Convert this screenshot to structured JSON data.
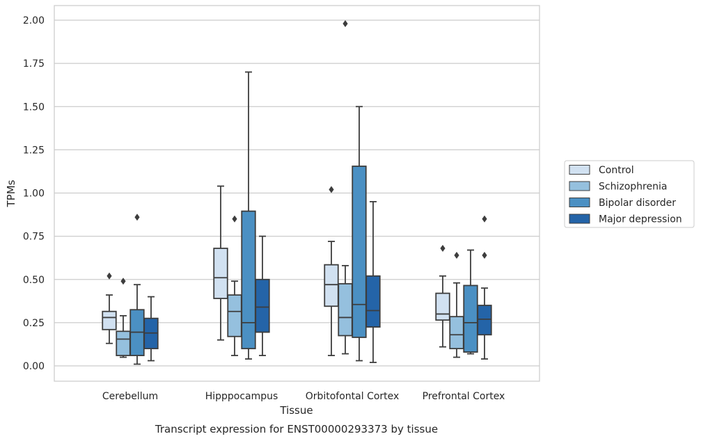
{
  "chart_data": {
    "type": "box",
    "caption": "Transcript expression for ENST00000293373 by tissue",
    "xlabel": "Tissue",
    "ylabel": "TPMs",
    "ylim": [
      -0.09,
      2.08
    ],
    "yticks": [
      "0.00",
      "0.25",
      "0.50",
      "0.75",
      "1.00",
      "1.25",
      "1.50",
      "1.75",
      "2.00"
    ],
    "ytick_values": [
      0,
      0.25,
      0.5,
      0.75,
      1.0,
      1.25,
      1.5,
      1.75,
      2.0
    ],
    "grid": "horizontal",
    "legend_position": "right",
    "categories": [
      "Cerebellum",
      "Hipppocampus",
      "Orbitofontal Cortex",
      "Prefrontal Cortex"
    ],
    "series": [
      {
        "name": "Control",
        "color": "#d1e1f1",
        "boxes": [
          {
            "whisker_low": 0.13,
            "q1": 0.21,
            "median": 0.28,
            "q3": 0.315,
            "whisker_high": 0.41,
            "outliers": [
              0.52
            ]
          },
          {
            "whisker_low": 0.15,
            "q1": 0.39,
            "median": 0.51,
            "q3": 0.68,
            "whisker_high": 1.04,
            "outliers": []
          },
          {
            "whisker_low": 0.06,
            "q1": 0.345,
            "median": 0.47,
            "q3": 0.585,
            "whisker_high": 0.72,
            "outliers": [
              1.02
            ]
          },
          {
            "whisker_low": 0.11,
            "q1": 0.265,
            "median": 0.3,
            "q3": 0.42,
            "whisker_high": 0.52,
            "outliers": [
              0.68
            ]
          }
        ]
      },
      {
        "name": "Schizophrenia",
        "color": "#95c0de",
        "boxes": [
          {
            "whisker_low": 0.05,
            "q1": 0.06,
            "median": 0.155,
            "q3": 0.2,
            "whisker_high": 0.29,
            "outliers": [
              0.49
            ]
          },
          {
            "whisker_low": 0.06,
            "q1": 0.17,
            "median": 0.315,
            "q3": 0.41,
            "whisker_high": 0.49,
            "outliers": [
              0.85
            ]
          },
          {
            "whisker_low": 0.07,
            "q1": 0.175,
            "median": 0.28,
            "q3": 0.475,
            "whisker_high": 0.58,
            "outliers": [
              1.98
            ]
          },
          {
            "whisker_low": 0.05,
            "q1": 0.1,
            "median": 0.18,
            "q3": 0.285,
            "whisker_high": 0.48,
            "outliers": [
              0.64
            ]
          }
        ]
      },
      {
        "name": "Bipolar disorder",
        "color": "#4b90c3",
        "boxes": [
          {
            "whisker_low": 0.01,
            "q1": 0.06,
            "median": 0.195,
            "q3": 0.325,
            "whisker_high": 0.47,
            "outliers": [
              0.86
            ]
          },
          {
            "whisker_low": 0.04,
            "q1": 0.1,
            "median": 0.25,
            "q3": 0.895,
            "whisker_high": 1.7,
            "outliers": []
          },
          {
            "whisker_low": 0.03,
            "q1": 0.165,
            "median": 0.355,
            "q3": 1.155,
            "whisker_high": 1.5,
            "outliers": []
          },
          {
            "whisker_low": 0.07,
            "q1": 0.08,
            "median": 0.25,
            "q3": 0.465,
            "whisker_high": 0.67,
            "outliers": []
          }
        ]
      },
      {
        "name": "Major depression",
        "color": "#2464a8",
        "boxes": [
          {
            "whisker_low": 0.03,
            "q1": 0.1,
            "median": 0.19,
            "q3": 0.275,
            "whisker_high": 0.4,
            "outliers": []
          },
          {
            "whisker_low": 0.06,
            "q1": 0.195,
            "median": 0.34,
            "q3": 0.5,
            "whisker_high": 0.75,
            "outliers": []
          },
          {
            "whisker_low": 0.02,
            "q1": 0.225,
            "median": 0.32,
            "q3": 0.52,
            "whisker_high": 0.95,
            "outliers": []
          },
          {
            "whisker_low": 0.04,
            "q1": 0.18,
            "median": 0.27,
            "q3": 0.35,
            "whisker_high": 0.45,
            "outliers": [
              0.64,
              0.85
            ]
          }
        ]
      }
    ]
  }
}
